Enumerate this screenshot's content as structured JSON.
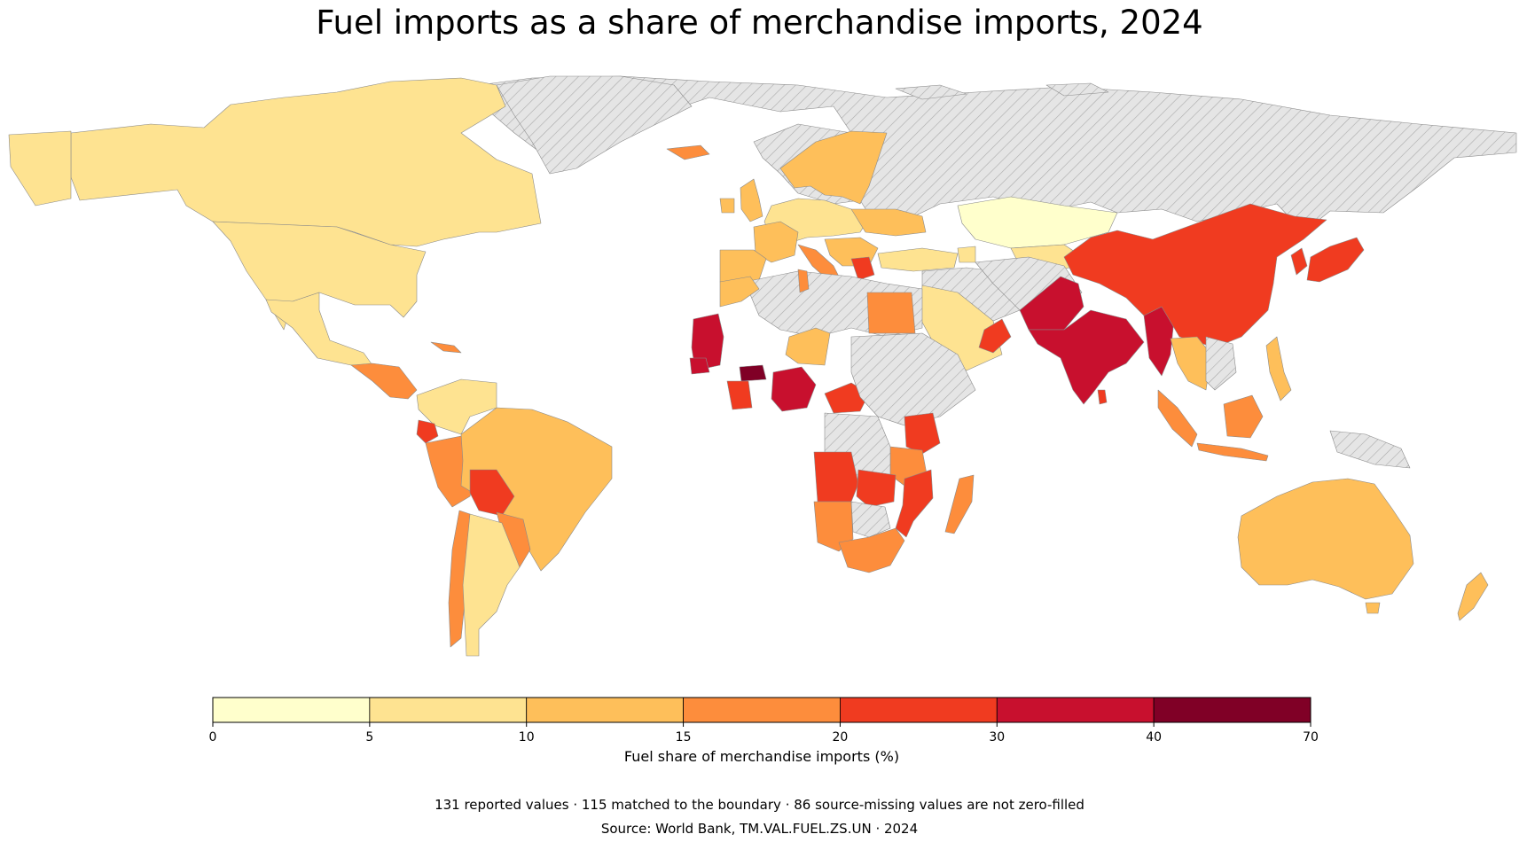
{
  "title": "Fuel imports as a share of merchandise imports, 2024",
  "legend": {
    "label": "Fuel share of merchandise imports (%)",
    "bins": [
      {
        "from": 0,
        "to": 5,
        "color": "#ffffcc"
      },
      {
        "from": 5,
        "to": 10,
        "color": "#fee391"
      },
      {
        "from": 10,
        "to": 15,
        "color": "#febf5a"
      },
      {
        "from": 15,
        "to": 20,
        "color": "#fd8d3c"
      },
      {
        "from": 20,
        "to": 30,
        "color": "#f03b20"
      },
      {
        "from": 30,
        "to": 40,
        "color": "#c8102e"
      },
      {
        "from": 40,
        "to": 70,
        "color": "#800026"
      }
    ],
    "ticks": [
      "0",
      "5",
      "10",
      "15",
      "20",
      "30",
      "40",
      "70"
    ]
  },
  "missing_style": {
    "fill": "#e5e5e5",
    "hatch": "#aaaaaa"
  },
  "notes": {
    "line1": "131 reported values · 115 matched to the boundary · 86 source-missing values are not zero-filled",
    "line2": "Source: World Bank, TM.VAL.FUEL.ZS.UN · 2024"
  }
}
